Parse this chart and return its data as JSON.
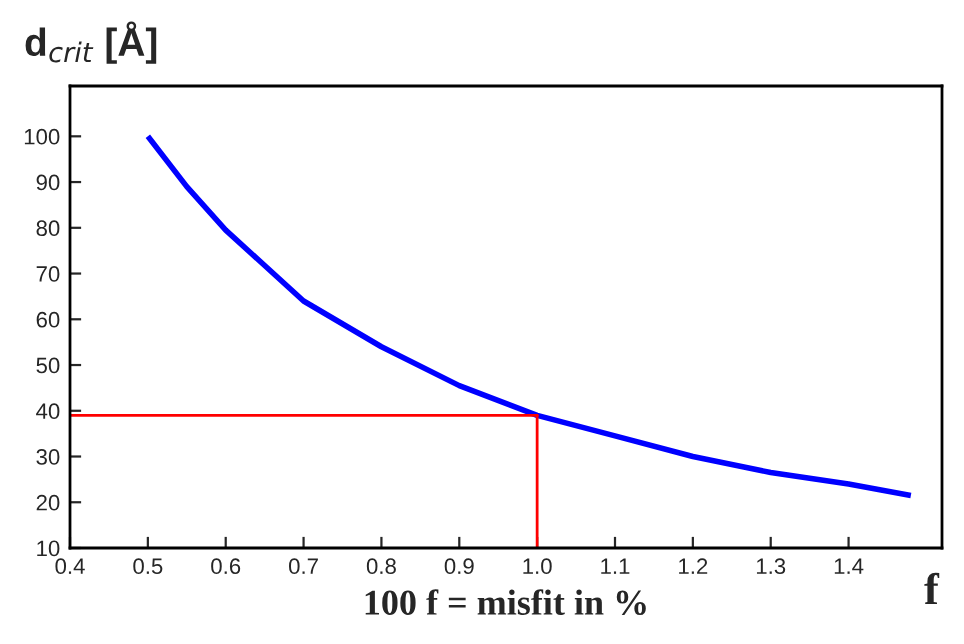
{
  "chart_data": {
    "type": "line",
    "x": [
      0.5,
      0.55,
      0.6,
      0.7,
      0.8,
      0.9,
      1.0,
      1.1,
      1.2,
      1.3,
      1.4,
      1.48
    ],
    "series": [
      {
        "color": "#0000ff",
        "values": [
          100,
          89,
          79.5,
          64,
          54,
          45.5,
          39,
          34.5,
          30,
          26.5,
          24,
          21.5
        ]
      }
    ],
    "ref_lines": [
      {
        "axis": "y",
        "value": 39,
        "color": "#ff0000"
      },
      {
        "axis": "x",
        "value": 1.0,
        "color": "#ff0000"
      }
    ],
    "ylabel": "d$_{crit}$ [Å]",
    "xlabel": "100 f = misfit in %",
    "annotations": [
      "f"
    ],
    "xlim": [
      0.4,
      1.52
    ],
    "ylim": [
      10,
      111
    ],
    "xticks": [
      {
        "value": 0.4,
        "label": "0.4"
      },
      {
        "value": 0.5,
        "label": "0.5"
      },
      {
        "value": 0.6,
        "label": "0.6"
      },
      {
        "value": 0.7,
        "label": "0.7"
      },
      {
        "value": 0.8,
        "label": "0.8"
      },
      {
        "value": 0.9,
        "label": "0.9"
      },
      {
        "value": 1.0,
        "label": "1.0"
      },
      {
        "value": 1.1,
        "label": "1.1"
      },
      {
        "value": 1.2,
        "label": "1.2"
      },
      {
        "value": 1.3,
        "label": "1.3"
      },
      {
        "value": 1.4,
        "label": "1.4"
      }
    ],
    "yticks": [
      10,
      20,
      30,
      40,
      50,
      60,
      70,
      80,
      90,
      100
    ],
    "grid": false,
    "legend": false
  }
}
